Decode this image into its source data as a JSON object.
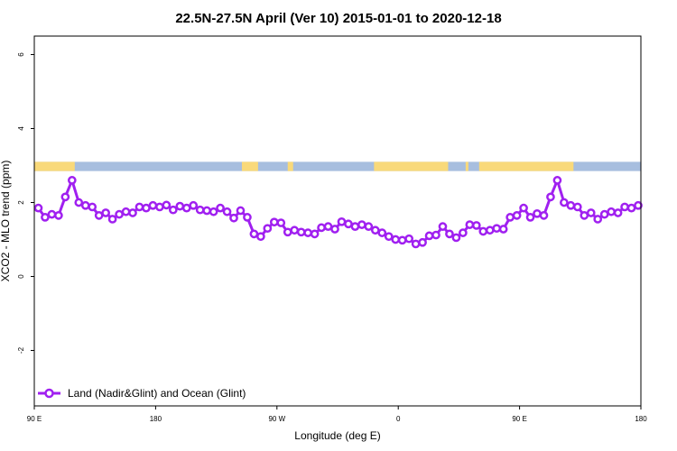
{
  "chart_data": {
    "type": "line",
    "title": "22.5N-27.5N April (Ver 10)   2015-01-01 to 2020-12-18",
    "xlabel": "Longitude (deg E)",
    "ylabel": "XCO2 - MLO trend (ppm)",
    "xlim": [
      90,
      540
    ],
    "ylim": [
      -3.5,
      6.5
    ],
    "x_ticks": [
      {
        "value": 90,
        "label": "90 E"
      },
      {
        "value": 180,
        "label": "180"
      },
      {
        "value": 270,
        "label": "90 W"
      },
      {
        "value": 360,
        "label": "0"
      },
      {
        "value": 450,
        "label": "90 E"
      },
      {
        "value": 540,
        "label": "180"
      }
    ],
    "y_ticks": [
      {
        "value": -2,
        "label": "-2"
      },
      {
        "value": 0,
        "label": "0"
      },
      {
        "value": 2,
        "label": "2"
      },
      {
        "value": 4,
        "label": "4"
      },
      {
        "value": 6,
        "label": "6"
      }
    ],
    "grid": false,
    "legend_position": "bottom-left",
    "land_mask": {
      "y_range": [
        2.85,
        3.1
      ],
      "ocean_color": "#a7bedf",
      "land_color": "#f9d97a",
      "land_segments": [
        [
          90,
          120
        ],
        [
          244,
          256
        ],
        [
          278,
          282
        ],
        [
          342,
          397
        ],
        [
          410,
          412
        ],
        [
          420,
          490
        ]
      ]
    },
    "series": [
      {
        "name": "Land (Nadir&Glint) and Ocean (Glint)",
        "color": "#a020f0",
        "x": [
          93,
          98,
          103,
          108,
          113,
          118,
          123,
          128,
          133,
          138,
          143,
          148,
          153,
          158,
          163,
          168,
          173,
          178,
          183,
          188,
          193,
          198,
          203,
          208,
          213,
          218,
          223,
          228,
          233,
          238,
          243,
          248,
          253,
          258,
          263,
          268,
          273,
          278,
          283,
          288,
          293,
          298,
          303,
          308,
          313,
          318,
          323,
          328,
          333,
          338,
          343,
          348,
          353,
          358,
          363,
          368,
          373,
          378,
          383,
          388,
          393,
          398,
          403,
          408,
          413,
          418,
          423,
          428,
          433,
          438,
          443,
          448,
          453,
          458,
          463,
          468,
          473,
          478,
          483,
          488,
          493,
          498,
          503,
          508,
          513,
          518,
          523,
          528,
          533,
          538
        ],
        "values": [
          1.85,
          1.6,
          1.68,
          1.65,
          2.15,
          2.6,
          2.0,
          1.92,
          1.88,
          1.65,
          1.72,
          1.55,
          1.68,
          1.75,
          1.72,
          1.88,
          1.85,
          1.92,
          1.88,
          1.93,
          1.8,
          1.9,
          1.85,
          1.92,
          1.8,
          1.78,
          1.75,
          1.85,
          1.75,
          1.58,
          1.78,
          1.6,
          1.15,
          1.08,
          1.3,
          1.47,
          1.45,
          1.2,
          1.25,
          1.2,
          1.18,
          1.15,
          1.32,
          1.35,
          1.28,
          1.48,
          1.42,
          1.35,
          1.4,
          1.35,
          1.25,
          1.18,
          1.08,
          1.0,
          0.98,
          1.02,
          0.88,
          0.92,
          1.1,
          1.12,
          1.35,
          1.15,
          1.05,
          1.18,
          1.4,
          1.38,
          1.22,
          1.25,
          1.3,
          1.28,
          1.6,
          1.65,
          1.85,
          1.6,
          1.7,
          1.65,
          2.15,
          2.6,
          2.0,
          1.92,
          1.88,
          1.65,
          1.72,
          1.55,
          1.68,
          1.75,
          1.72,
          1.88,
          1.85,
          1.92
        ]
      }
    ]
  }
}
